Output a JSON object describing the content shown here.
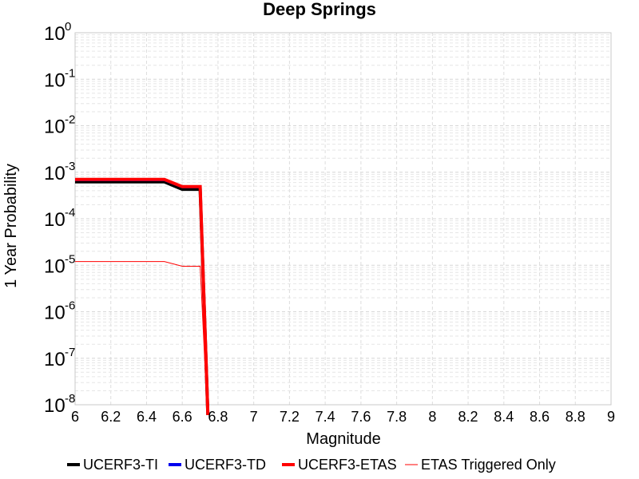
{
  "chart_data": {
    "type": "line",
    "title": "Deep Springs",
    "xlabel": "Magnitude",
    "ylabel": "1 Year Probability",
    "xlim": [
      6,
      9
    ],
    "ylim": [
      1e-08,
      1
    ],
    "yscale": "log",
    "grid": true,
    "legend_position": "bottom",
    "x_ticks": [
      "6",
      "6.2",
      "6.4",
      "6.6",
      "6.8",
      "7",
      "7.2",
      "7.4",
      "7.6",
      "7.8",
      "8",
      "8.2",
      "8.4",
      "8.6",
      "8.8",
      "9"
    ],
    "y_ticks": [
      {
        "base": "10",
        "exp": "0"
      },
      {
        "base": "10",
        "exp": "-1"
      },
      {
        "base": "10",
        "exp": "-2"
      },
      {
        "base": "10",
        "exp": "-3"
      },
      {
        "base": "10",
        "exp": "-4"
      },
      {
        "base": "10",
        "exp": "-5"
      },
      {
        "base": "10",
        "exp": "-6"
      },
      {
        "base": "10",
        "exp": "-7"
      },
      {
        "base": "10",
        "exp": "-8"
      }
    ],
    "series": [
      {
        "name": "UCERF3-TI",
        "color": "#000000",
        "width": 4,
        "points": [
          [
            6.0,
            0.00062
          ],
          [
            6.5,
            0.00062
          ],
          [
            6.6,
            0.00043
          ],
          [
            6.7,
            0.00043
          ],
          [
            6.75,
            1e-09
          ]
        ]
      },
      {
        "name": "UCERF3-TD",
        "color": "#0000ee",
        "width": 3,
        "points": [
          [
            6.0,
            0.00068
          ],
          [
            6.5,
            0.00068
          ],
          [
            6.6,
            0.00048
          ],
          [
            6.7,
            0.00048
          ],
          [
            6.75,
            1e-09
          ]
        ]
      },
      {
        "name": "UCERF3-ETAS",
        "color": "#ff0000",
        "width": 4,
        "points": [
          [
            6.0,
            0.0007
          ],
          [
            6.5,
            0.0007
          ],
          [
            6.6,
            0.00049
          ],
          [
            6.7,
            0.00049
          ],
          [
            6.75,
            1e-09
          ]
        ]
      },
      {
        "name": "ETAS Triggered Only",
        "color": "#ff0000",
        "width": 1,
        "points": [
          [
            6.0,
            1.2e-05
          ],
          [
            6.5,
            1.2e-05
          ],
          [
            6.6,
            9.5e-06
          ],
          [
            6.7,
            9.5e-06
          ],
          [
            6.75,
            1e-09
          ]
        ]
      }
    ]
  }
}
